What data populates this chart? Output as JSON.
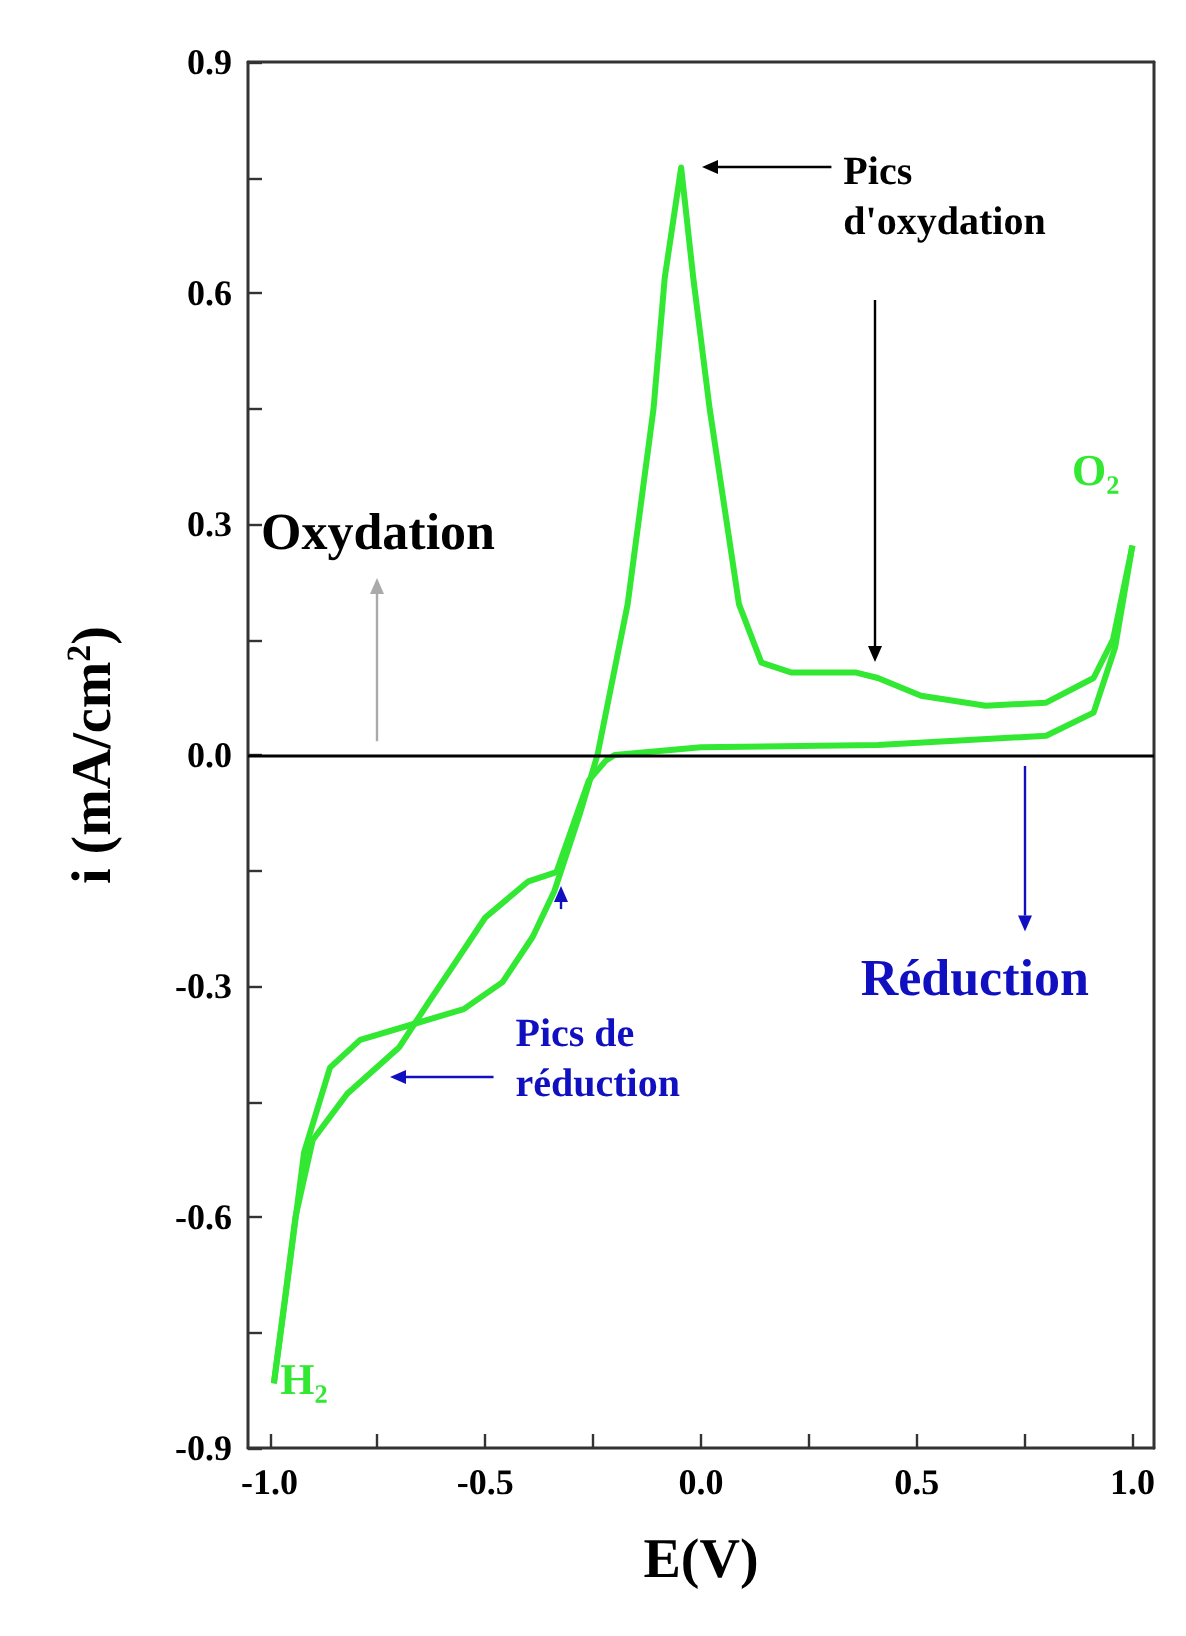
{
  "chart_data": {
    "type": "line",
    "xlabel": "E(V)",
    "ylabel": "i (mA/cm$^{2}$)",
    "xlim": [
      -1.05,
      1.05
    ],
    "ylim": [
      -0.9,
      0.9
    ],
    "xticks": [
      {
        "value": -1,
        "label": "-1.0"
      },
      {
        "value": -0.75,
        "label": null
      },
      {
        "value": -0.5,
        "label": "-0.5"
      },
      {
        "value": -0.25,
        "label": null
      },
      {
        "value": 0,
        "label": "0.0"
      },
      {
        "value": 0.25,
        "label": null
      },
      {
        "value": 0.5,
        "label": "0.5"
      },
      {
        "value": 0.75,
        "label": null
      },
      {
        "value": 1,
        "label": "1.0"
      }
    ],
    "yticks": [
      -0.9,
      {
        "value": -0.75,
        "label": null
      },
      -0.6,
      {
        "value": -0.45,
        "label": null
      },
      -0.3,
      {
        "value": -0.15,
        "label": null
      },
      {
        "value": 0,
        "label": "0.0"
      },
      {
        "value": 0.15,
        "label": null
      },
      0.3,
      {
        "value": 0.45,
        "label": null
      },
      0.6,
      {
        "value": 0.75,
        "label": null
      },
      0.9
    ],
    "series": [
      {
        "color": "#33e833",
        "x": [
          -0.99,
          -0.96,
          -0.92,
          -0.86,
          -0.79,
          -0.67,
          -0.55,
          -0.46,
          -0.39,
          -0.34,
          -0.28,
          -0.24,
          -0.17,
          -0.11,
          -0.084,
          -0.046,
          -0.018,
          0.02,
          0.088,
          0.14,
          0.21,
          0.36,
          0.41,
          0.51,
          0.66,
          0.8,
          0.91,
          0.955,
          1.0
        ],
        "values": [
          -0.816,
          -0.69,
          -0.516,
          -0.406,
          -0.37,
          -0.35,
          -0.33,
          -0.295,
          -0.236,
          -0.177,
          -0.075,
          0.0,
          0.196,
          0.45,
          0.62,
          0.763,
          0.62,
          0.45,
          0.196,
          0.12,
          0.107,
          0.107,
          0.1,
          0.077,
          0.064,
          0.068,
          0.1,
          0.15,
          0.272
        ]
      },
      {
        "color": "#33e833",
        "x": [
          -0.99,
          -0.97,
          -0.94,
          -0.9,
          -0.82,
          -0.7,
          -0.63,
          -0.57,
          -0.5,
          -0.4,
          -0.335,
          -0.26,
          -0.22,
          -0.2,
          0.0,
          0.41,
          0.8,
          0.91,
          0.96,
          1.0
        ],
        "values": [
          -0.816,
          -0.73,
          -0.6,
          -0.5,
          -0.44,
          -0.38,
          -0.32,
          -0.27,
          -0.211,
          -0.164,
          -0.152,
          -0.033,
          -0.007,
          0.0,
          0.01,
          0.013,
          0.025,
          0.055,
          0.14,
          0.272
        ]
      }
    ],
    "ref_lines": [
      {
        "axis": "y",
        "value": 0,
        "color": "#000000"
      }
    ],
    "marker": "none",
    "line_style": "solid",
    "grid": false,
    "annotations": [
      "Pics d'oxydation",
      "Pics de réduction",
      "Oxydation",
      "Réduction",
      "O₂",
      "H₂"
    ]
  }
}
